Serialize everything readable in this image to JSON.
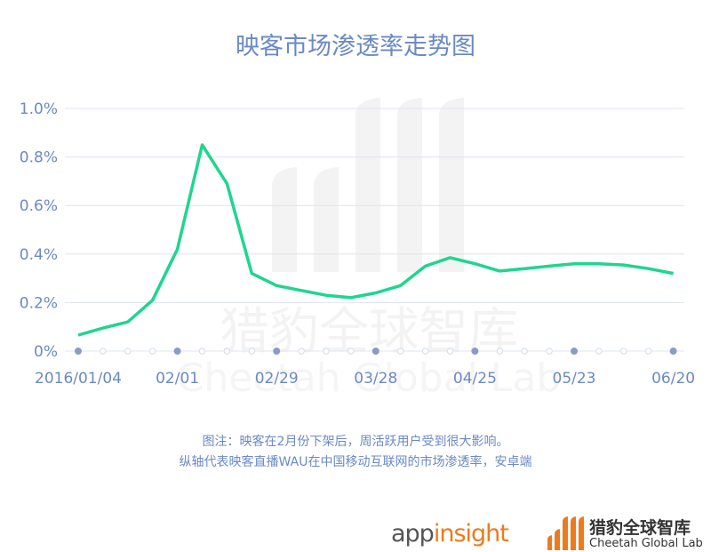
{
  "title": "映客市场渗透率走势图",
  "chart_data": {
    "type": "line",
    "title": "映客市场渗透率走势图",
    "xlabel": "",
    "ylabel": "",
    "ylim": [
      0,
      1.0
    ],
    "yticks": [
      "0%",
      "0.2%",
      "0.4%",
      "0.6%",
      "0.8%",
      "1.0%"
    ],
    "xtick_labels": [
      "2016/01/04",
      "02/01",
      "02/29",
      "03/28",
      "04/25",
      "05/23",
      "06/20"
    ],
    "x": [
      "2016/01/04",
      "01/11",
      "01/18",
      "01/25",
      "02/01",
      "02/08",
      "02/15",
      "02/22",
      "02/29",
      "03/07",
      "03/14",
      "03/21",
      "03/28",
      "04/04",
      "04/11",
      "04/18",
      "04/25",
      "05/02",
      "05/09",
      "05/16",
      "05/23",
      "05/30",
      "06/06",
      "06/13",
      "06/20"
    ],
    "series": [
      {
        "name": "映客 市场渗透率",
        "color": "#1ed68e",
        "values": [
          0.066,
          0.095,
          0.12,
          0.21,
          0.42,
          0.85,
          0.69,
          0.32,
          0.27,
          0.25,
          0.23,
          0.22,
          0.24,
          0.27,
          0.35,
          0.385,
          0.36,
          0.33,
          0.34,
          0.35,
          0.36,
          0.36,
          0.355,
          0.34,
          0.32
        ]
      }
    ],
    "grid": true,
    "legend": "none"
  },
  "notes": {
    "line1": "图注：映客在2月份下架后，周活跃用户受到很大影响。",
    "line2": "纵轴代表映客直播WAU在中国移动互联网的市场渗透率，安卓端"
  },
  "watermark": {
    "cn": "猎豹全球智库",
    "en": "Cheetah Global Lab"
  },
  "logos": {
    "appinsight_app": "app",
    "appinsight_insight": "insight",
    "cheetah_cn": "猎豹全球智库",
    "cheetah_en": "Cheetah Global Lab"
  },
  "colors": {
    "axis_text": "#6a8ac4",
    "line": "#1ed68e",
    "grid": "#dfe4ee",
    "accent_orange": "#ee7a1e"
  }
}
